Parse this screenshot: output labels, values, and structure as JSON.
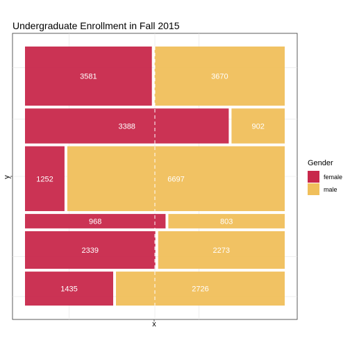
{
  "chart_data": {
    "type": "mosaic",
    "title": "Undergraduate Enrollment in Fall 2015",
    "xlabel": "x",
    "ylabel": "y",
    "legend": {
      "title": "Gender",
      "position": "right",
      "entries": [
        {
          "name": "female",
          "color": "#c8284b"
        },
        {
          "name": "male",
          "color": "#f0bf5b"
        }
      ]
    },
    "series": [
      "female",
      "male"
    ],
    "rows": [
      {
        "female": 3581,
        "male": 3670
      },
      {
        "female": 3388,
        "male": 902
      },
      {
        "female": 1252,
        "male": 6697
      },
      {
        "female": 968,
        "male": 803
      },
      {
        "female": 2339,
        "male": 2273
      },
      {
        "female": 1435,
        "male": 2726
      }
    ],
    "reference_line": {
      "style": "dashed",
      "value": 0.5,
      "color": "#ffffff"
    },
    "grid": true
  }
}
